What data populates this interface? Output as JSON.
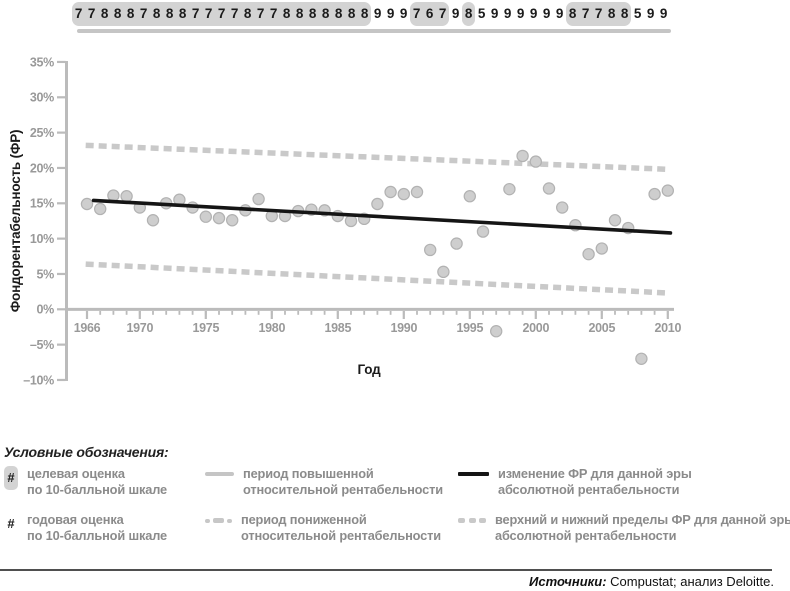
{
  "strip": {
    "groups": [
      {
        "boxed": true,
        "digits": [
          "7",
          "7",
          "8",
          "8",
          "8",
          "7",
          "8",
          "8",
          "8",
          "7",
          "7",
          "7",
          "7",
          "8",
          "7",
          "7",
          "8",
          "8",
          "8",
          "8",
          "8",
          "8",
          "8"
        ]
      },
      {
        "boxed": false,
        "digits": [
          "9",
          "9",
          "9"
        ]
      },
      {
        "boxed": true,
        "digits": [
          "7",
          "6",
          "7"
        ]
      },
      {
        "boxed": false,
        "digits": [
          "9"
        ]
      },
      {
        "boxed": true,
        "digits": [
          "8"
        ]
      },
      {
        "boxed": false,
        "digits": [
          "5",
          "9",
          "9",
          "9",
          "9",
          "9",
          "9"
        ]
      },
      {
        "boxed": true,
        "digits": [
          "8",
          "7",
          "7",
          "8",
          "8"
        ]
      },
      {
        "boxed": false,
        "digits": [
          "5",
          "9",
          "9"
        ]
      }
    ]
  },
  "chart_data": {
    "type": "scatter",
    "title": "",
    "xlabel": "Год",
    "ylabel": "Фондорентабельность (ФР)",
    "xlim": [
      1966,
      2010
    ],
    "ylim": [
      -10,
      35
    ],
    "grid": false,
    "ytick_values": [
      35,
      30,
      25,
      20,
      15,
      10,
      5,
      0,
      -5,
      -10
    ],
    "ytick_labels": [
      "35%",
      "30%",
      "25%",
      "20%",
      "15%",
      "10%",
      "5%",
      "0%",
      "–5%",
      "–10%"
    ],
    "xtick_major_values": [
      1966,
      1970,
      1975,
      1980,
      1985,
      1990,
      1995,
      2000,
      2005,
      2010
    ],
    "points": {
      "name": "годовая ФР",
      "years": [
        1966,
        1967,
        1968,
        1969,
        1970,
        1971,
        1972,
        1973,
        1974,
        1975,
        1976,
        1977,
        1978,
        1979,
        1980,
        1981,
        1982,
        1983,
        1984,
        1985,
        1986,
        1987,
        1988,
        1989,
        1990,
        1991,
        1992,
        1993,
        1994,
        1995,
        1996,
        1997,
        1998,
        1999,
        2000,
        2001,
        2002,
        2003,
        2004,
        2005,
        2006,
        2007,
        2008,
        2009,
        2010
      ],
      "values": [
        14.9,
        14.2,
        16.1,
        16.0,
        14.4,
        12.6,
        15.0,
        15.5,
        14.4,
        13.1,
        12.9,
        12.6,
        14.0,
        15.6,
        13.2,
        13.2,
        13.9,
        14.1,
        14.0,
        13.2,
        12.5,
        12.8,
        14.9,
        16.6,
        16.3,
        16.6,
        8.4,
        5.3,
        9.3,
        16.0,
        11.0,
        -3.1,
        17.0,
        21.7,
        20.9,
        17.1,
        14.4,
        11.9,
        7.8,
        8.6,
        12.6,
        11.5,
        -7.0,
        16.3,
        16.8
      ]
    },
    "trend_line": {
      "name": "изменение ФР для данной эры абсолютной рентабельности",
      "x": [
        1966.5,
        2010.2
      ],
      "y": [
        15.4,
        10.8
      ]
    },
    "upper_limit": {
      "name": "верхний предел ФР",
      "x": [
        1965.9,
        2010.1
      ],
      "y": [
        23.2,
        19.8
      ]
    },
    "lower_limit": {
      "name": "нижний предел ФР",
      "x": [
        1965.9,
        2010.1
      ],
      "y": [
        6.4,
        2.3
      ]
    },
    "colors": {
      "axis": "#bbbbbb",
      "tick_text": "#999999",
      "dot_fill": "#cecece",
      "dot_stroke": "#b2b2b2",
      "limit_line": "#c9c9c9",
      "trend_line": "#151515",
      "era_box": "#d3d3d3"
    }
  },
  "legend": {
    "title": "Условные обозначения:",
    "hash_symbol": "#",
    "items": [
      {
        "line1": "целевая оценка",
        "line2": "по 10-балльной шкале"
      },
      {
        "line1": "годовая оценка",
        "line2": "по 10-балльной шкале"
      },
      {
        "line1": "период повышенной",
        "line2": "относительной рентабельности"
      },
      {
        "line1": "период пониженной",
        "line2": "относительной рентабельности"
      },
      {
        "line1": "изменение ФР для данной эры",
        "line2": "абсолютной рентабельности"
      },
      {
        "line1": "верхний и нижний пределы ФР для данной эры",
        "line2": "абсолютной рентабельности"
      }
    ]
  },
  "source": {
    "label": "Источники:",
    "text": " Compustat; анализ Deloitte."
  }
}
